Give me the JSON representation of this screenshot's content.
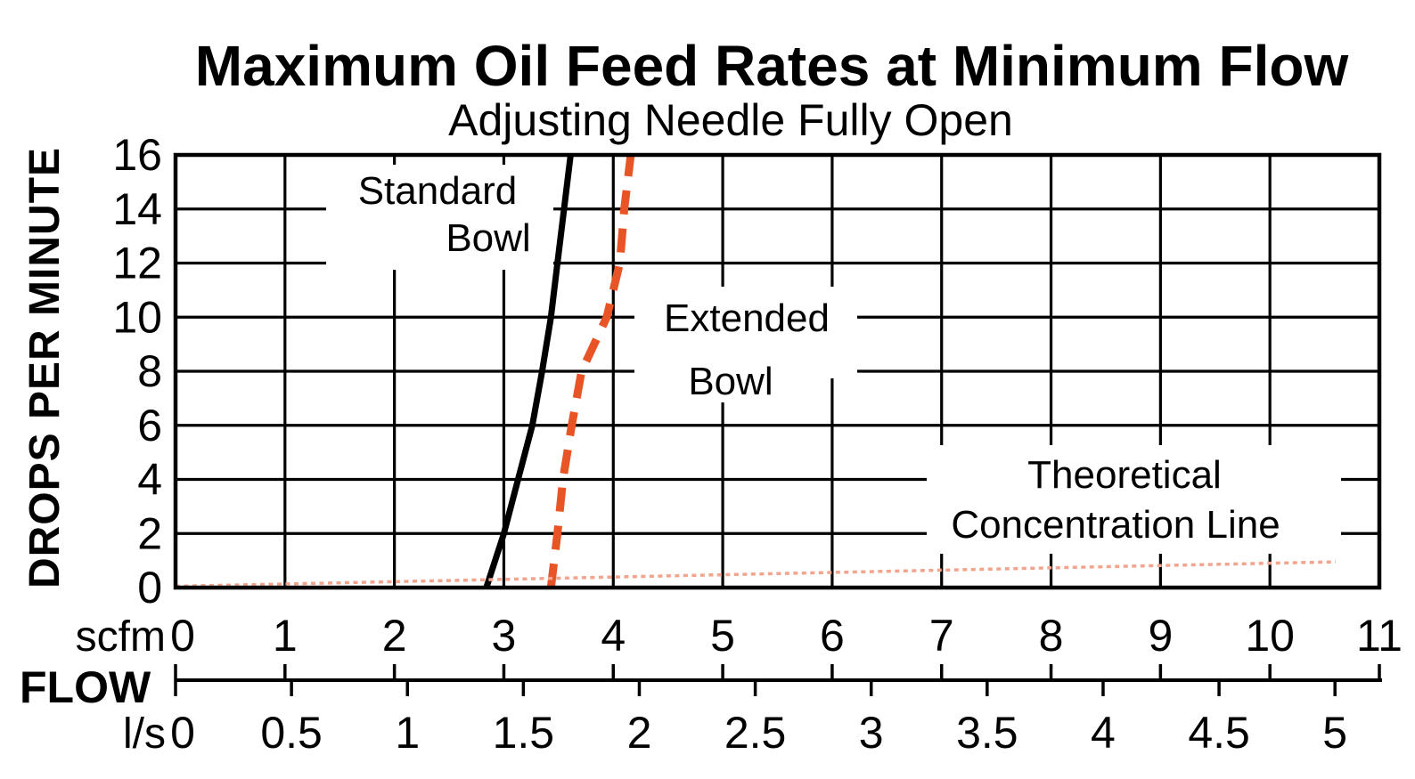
{
  "chart_data": {
    "type": "line",
    "title": "Maximum Oil Feed Rates at Minimum Flow",
    "subtitle": "Adjusting Needle Fully Open",
    "y_axis": {
      "label": "DROPS PER MINUTE",
      "range": [
        0,
        16
      ],
      "ticks": [
        0,
        2,
        4,
        6,
        8,
        10,
        12,
        14,
        16
      ],
      "grid": true
    },
    "x_axis": {
      "axis_label": "FLOW",
      "primary_unit": "scfm",
      "secondary_unit": "l/s",
      "range": [
        0,
        11
      ],
      "primary_ticks": [
        "0",
        "1",
        "2",
        "3",
        "4",
        "5",
        "6",
        "7",
        "8",
        "9",
        "10",
        "11"
      ],
      "secondary_ticks": [
        "0",
        "0.5",
        "1",
        "1.5",
        "2",
        "2.5",
        "3",
        "3.5",
        "4",
        "4.5",
        "5"
      ],
      "scfm_per_ls": 2.1189,
      "grid": true
    },
    "series": [
      {
        "name": "Standard Bowl",
        "style": "solid",
        "color": "#000000",
        "label_lines": [
          "Standard",
          "Bowl"
        ],
        "points": [
          [
            2.84,
            0
          ],
          [
            3.0,
            2
          ],
          [
            3.13,
            4
          ],
          [
            3.26,
            6
          ],
          [
            3.35,
            8
          ],
          [
            3.43,
            10
          ],
          [
            3.49,
            12
          ],
          [
            3.55,
            14
          ],
          [
            3.61,
            16
          ]
        ]
      },
      {
        "name": "Extended Bowl",
        "style": "dashed",
        "color": "#E95426",
        "label_lines": [
          "Extended",
          "Bowl"
        ],
        "points": [
          [
            3.43,
            0
          ],
          [
            3.49,
            2
          ],
          [
            3.54,
            4
          ],
          [
            3.62,
            6
          ],
          [
            3.71,
            8
          ],
          [
            3.94,
            10
          ],
          [
            4.06,
            12
          ],
          [
            4.1,
            14
          ],
          [
            4.16,
            16
          ]
        ]
      },
      {
        "name": "Theoretical Concentration Line",
        "style": "dotted",
        "color": "#F2A48D",
        "label_lines": [
          "Theoretical",
          "Concentration Line"
        ],
        "points": [
          [
            0,
            0.05
          ],
          [
            10.6,
            0.95
          ]
        ]
      }
    ],
    "legend_position": "inline-annotations",
    "background": "#ffffff"
  }
}
